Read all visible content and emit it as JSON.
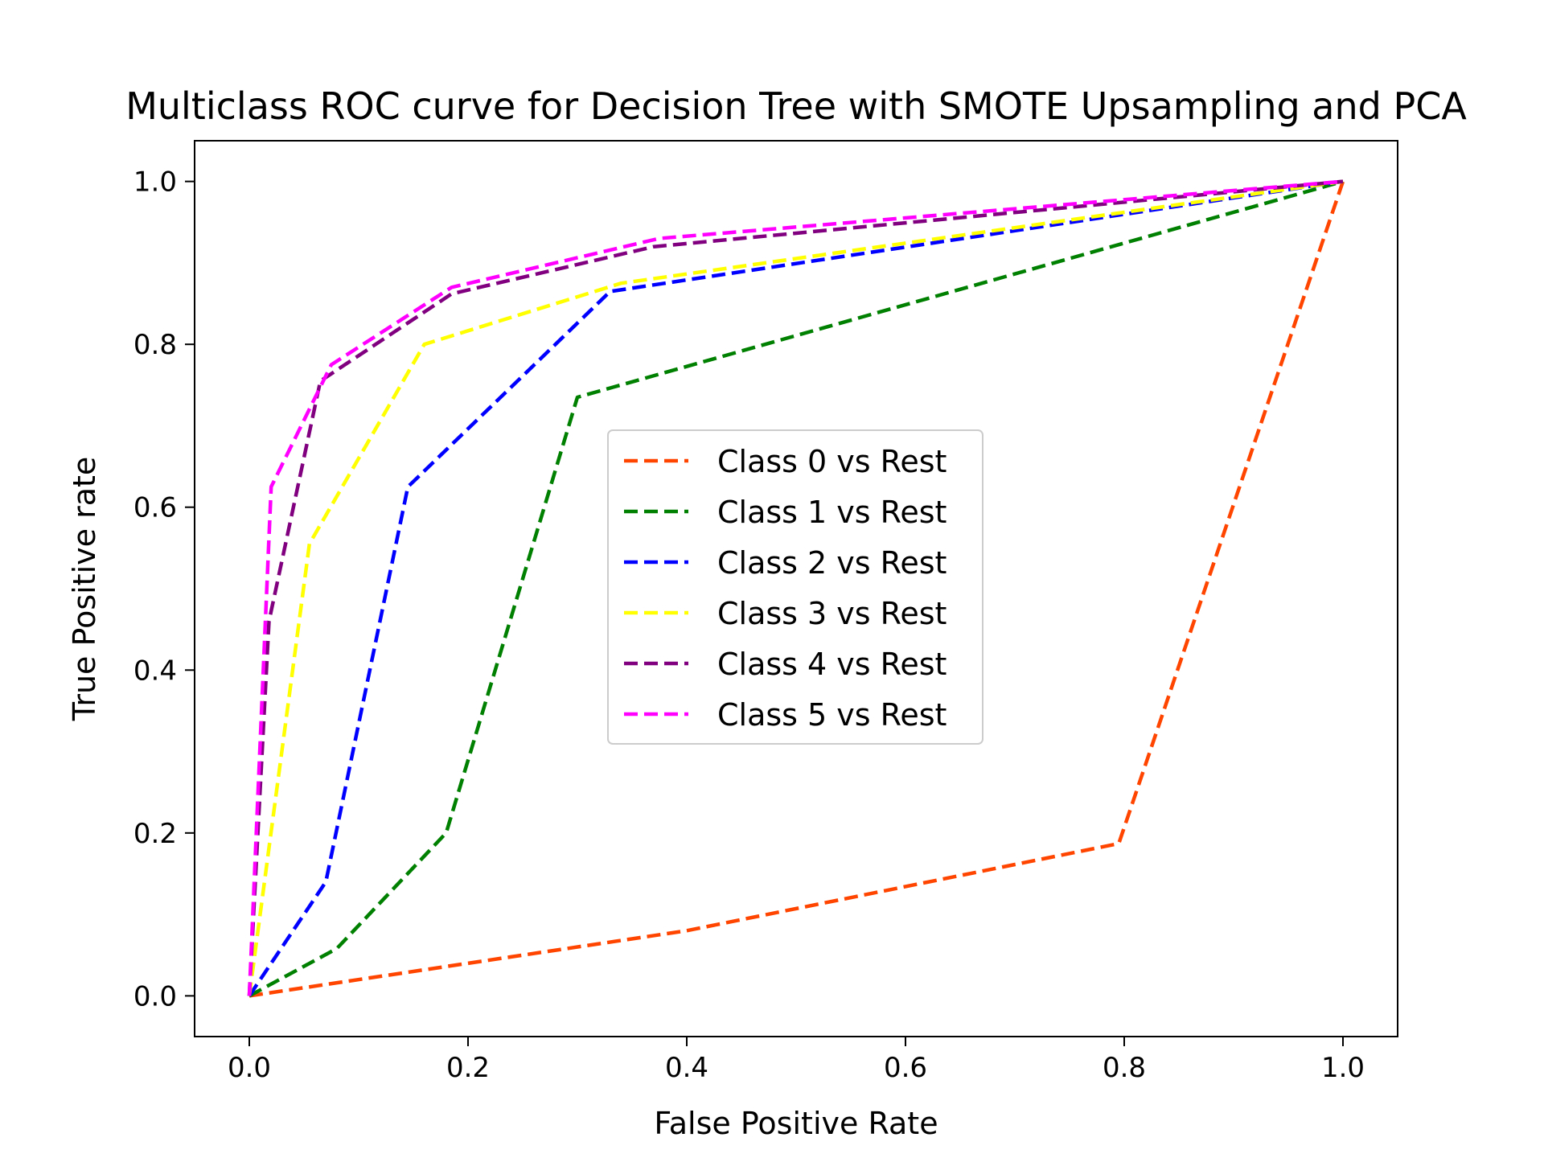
{
  "chart_data": {
    "type": "line",
    "title": "Multiclass ROC curve for Decision Tree with SMOTE Upsampling and PCA",
    "xlabel": "False Positive Rate",
    "ylabel": "True Positive rate",
    "xlim": [
      -0.05,
      1.05
    ],
    "ylim": [
      -0.05,
      1.05
    ],
    "xticks": [
      "0.0",
      "0.2",
      "0.4",
      "0.6",
      "0.8",
      "1.0"
    ],
    "yticks": [
      "0.0",
      "0.2",
      "0.4",
      "0.6",
      "0.8",
      "1.0"
    ],
    "grid": false,
    "line_style": "dashed",
    "legend_position": "center",
    "series": [
      {
        "name": "Class 0 vs Rest",
        "color": "#ff4500",
        "x": [
          0.0,
          0.4,
          0.795,
          1.0
        ],
        "y": [
          0.0,
          0.08,
          0.187,
          1.0
        ]
      },
      {
        "name": "Class 1 vs Rest",
        "color": "#008000",
        "x": [
          0.0,
          0.08,
          0.18,
          0.3,
          1.0
        ],
        "y": [
          0.0,
          0.058,
          0.2,
          0.735,
          1.0
        ]
      },
      {
        "name": "Class 2 vs Rest",
        "color": "#0000ff",
        "x": [
          0.0,
          0.07,
          0.145,
          0.33,
          1.0
        ],
        "y": [
          0.0,
          0.14,
          0.625,
          0.865,
          1.0
        ]
      },
      {
        "name": "Class 3 vs Rest",
        "color": "#ffff00",
        "x": [
          0.0,
          0.055,
          0.16,
          0.34,
          1.0
        ],
        "y": [
          0.0,
          0.555,
          0.8,
          0.875,
          1.0
        ]
      },
      {
        "name": "Class 4 vs Rest",
        "color": "#800080",
        "x": [
          0.0,
          0.018,
          0.065,
          0.185,
          0.37,
          1.0
        ],
        "y": [
          0.0,
          0.46,
          0.755,
          0.862,
          0.92,
          1.0
        ]
      },
      {
        "name": "Class 5 vs Rest",
        "color": "#ff00ff",
        "x": [
          0.0,
          0.02,
          0.075,
          0.185,
          0.375,
          1.0
        ],
        "y": [
          0.0,
          0.625,
          0.775,
          0.87,
          0.93,
          1.0
        ]
      }
    ]
  }
}
